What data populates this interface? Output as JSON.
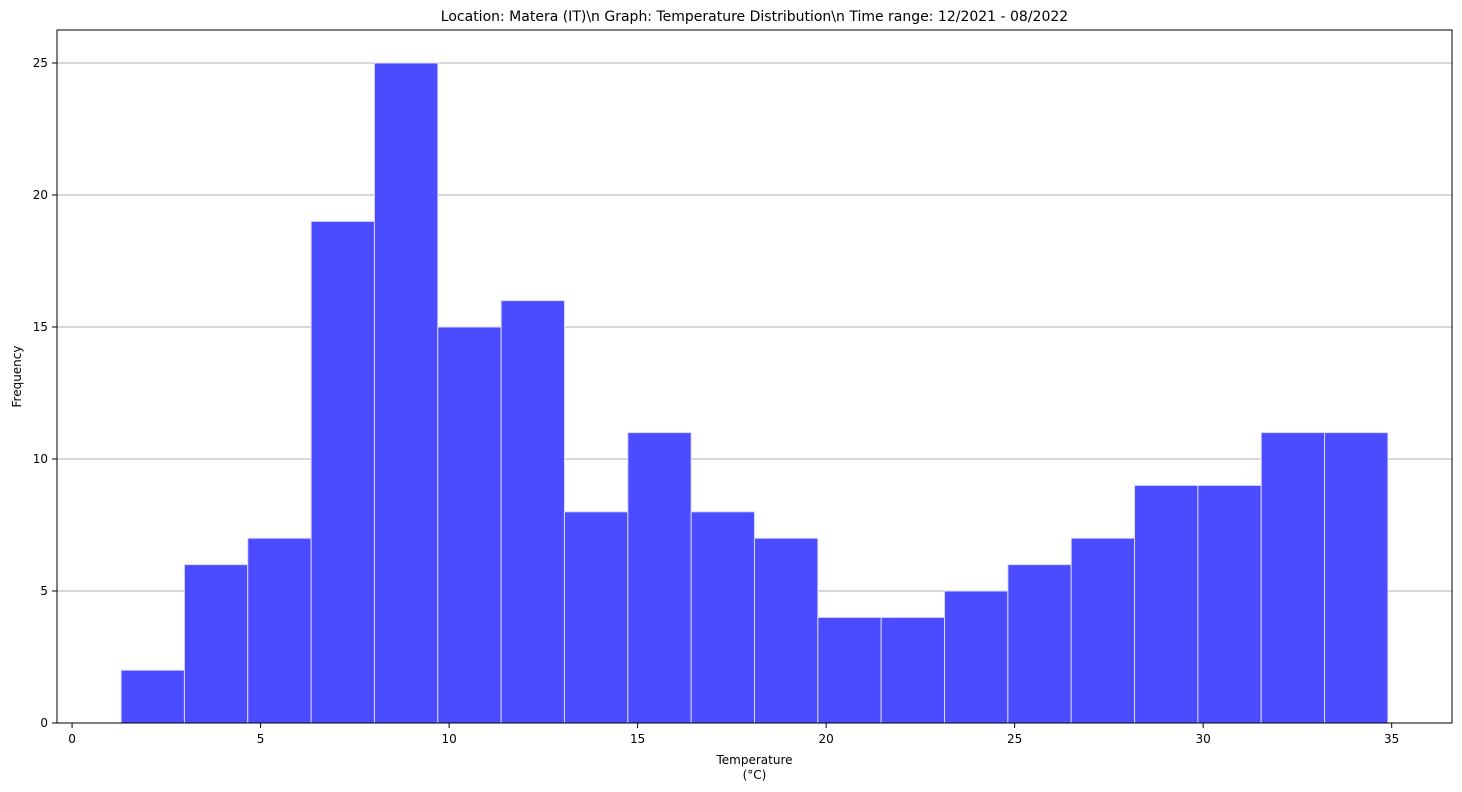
{
  "chart_data": {
    "type": "bar",
    "title": "Location: Matera (IT)\\n Graph: Temperature Distribution\\n Time range: 12/2021 - 08/2022",
    "xlabel_lines": [
      "Temperature",
      "(°C)"
    ],
    "ylabel": "Frequency",
    "bins": [
      {
        "x0": 1.3,
        "x1": 2.98,
        "count": 2
      },
      {
        "x0": 2.98,
        "x1": 4.66,
        "count": 6
      },
      {
        "x0": 4.66,
        "x1": 6.34,
        "count": 7
      },
      {
        "x0": 6.34,
        "x1": 8.02,
        "count": 19
      },
      {
        "x0": 8.02,
        "x1": 9.7,
        "count": 25
      },
      {
        "x0": 9.7,
        "x1": 11.38,
        "count": 15
      },
      {
        "x0": 11.38,
        "x1": 13.06,
        "count": 16
      },
      {
        "x0": 13.06,
        "x1": 14.74,
        "count": 8
      },
      {
        "x0": 14.74,
        "x1": 16.42,
        "count": 11
      },
      {
        "x0": 16.42,
        "x1": 18.1,
        "count": 8
      },
      {
        "x0": 18.1,
        "x1": 19.78,
        "count": 7
      },
      {
        "x0": 19.78,
        "x1": 21.46,
        "count": 4
      },
      {
        "x0": 21.46,
        "x1": 23.14,
        "count": 4
      },
      {
        "x0": 23.14,
        "x1": 24.82,
        "count": 5
      },
      {
        "x0": 24.82,
        "x1": 26.5,
        "count": 6
      },
      {
        "x0": 26.5,
        "x1": 28.18,
        "count": 7
      },
      {
        "x0": 28.18,
        "x1": 29.86,
        "count": 9
      },
      {
        "x0": 29.86,
        "x1": 31.54,
        "count": 9
      },
      {
        "x0": 31.54,
        "x1": 33.22,
        "count": 11
      },
      {
        "x0": 33.22,
        "x1": 34.9,
        "count": 11
      }
    ],
    "xlim": [
      -0.4,
      36.6
    ],
    "ylim": [
      0,
      26.25
    ],
    "xticks": [
      0,
      5,
      10,
      15,
      20,
      25,
      30,
      35
    ],
    "yticks": [
      0,
      5,
      10,
      15,
      20,
      25
    ],
    "grid": "y-axis only",
    "bar_color": "#4b4bff",
    "bar_edge_color": "#d9d9ff",
    "grid_color": "#b0b0b0"
  }
}
